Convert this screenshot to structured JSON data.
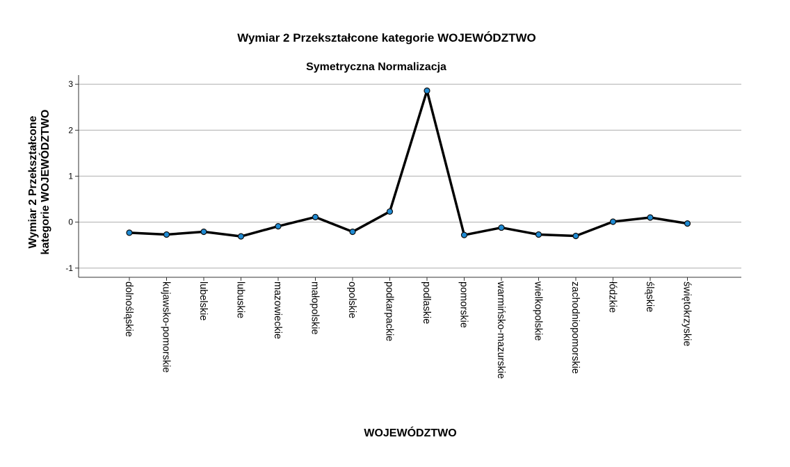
{
  "chart_data": {
    "type": "line",
    "title": "Wymiar 2 Przekształcone kategorie WOJEWÓDZTWO",
    "subtitle": "Symetryczna Normalizacja",
    "xlabel": "WOJEWÓDZTWO",
    "ylabel_lines": [
      "Wymiar 2 Przekształcone",
      "kategorie WOJEWÓDZTWO"
    ],
    "categories": [
      "dolnośląskie",
      "kujawsko-pomorskie",
      "lubelskie",
      "lubuskie",
      "mazowieckie",
      "małopolskie",
      "opolskie",
      "podkarpackie",
      "podlaskie",
      "pomorskie",
      "warmińsko-mazurskie",
      "wielkopolskie",
      "zachodniopomorskie",
      "łódzkie",
      "śląskie",
      "świętokrzyskie"
    ],
    "values": [
      -0.23,
      -0.27,
      -0.21,
      -0.31,
      -0.09,
      0.11,
      -0.21,
      0.23,
      2.86,
      -0.28,
      -0.12,
      -0.27,
      -0.3,
      0.01,
      0.1,
      -0.03
    ],
    "ylim": [
      -1.2,
      3.2
    ],
    "yticks": [
      -1,
      0,
      1,
      2,
      3
    ],
    "grid": true,
    "colors": {
      "line": "#000000",
      "marker_fill": "#1f8ad2",
      "marker_stroke": "#0d0d0d",
      "grid": "#bdbdbd",
      "axis": "#333333"
    }
  }
}
